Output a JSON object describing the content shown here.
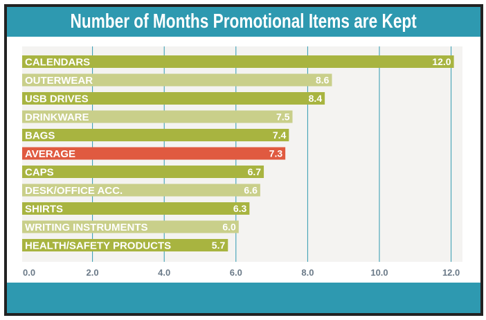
{
  "chart_data": {
    "type": "bar",
    "orientation": "horizontal",
    "title": "Number of Months Promotional Items are Kept",
    "categories": [
      "CALENDARS",
      "OUTERWEAR",
      "USB DRIVES",
      "DRINKWARE",
      "BAGS",
      "AVERAGE",
      "CAPS",
      "DESK/OFFICE ACC.",
      "SHIRTS",
      "WRITING INSTRUMENTS",
      "HEALTH/SAFETY PRODUCTS"
    ],
    "values": [
      12.0,
      8.6,
      8.4,
      7.5,
      7.4,
      7.3,
      6.7,
      6.6,
      6.3,
      6.0,
      5.7
    ],
    "value_labels": [
      "12.0",
      "8.6",
      "8.4",
      "7.5",
      "7.4",
      "7.3",
      "6.7",
      "6.6",
      "6.3",
      "6.0",
      "5.7"
    ],
    "xlim": [
      0,
      12
    ],
    "xticks": [
      "0.0",
      "2.0",
      "4.0",
      "6.0",
      "8.0",
      "10.0",
      "12.0"
    ],
    "xtick_values": [
      0,
      2,
      4,
      6,
      8,
      10,
      12
    ],
    "grid": "vertical",
    "xlabel": "",
    "ylabel": "",
    "colors": {
      "dark": "#a8b440",
      "light": "#c9cf8a",
      "highlight": "#e05a40",
      "grid": "#2e99b0",
      "plot_bg": "#f4f3f1",
      "header": "#2e99b0"
    },
    "bar_styles": [
      "dark",
      "light",
      "dark",
      "light",
      "dark",
      "highlight",
      "dark",
      "light",
      "dark",
      "light",
      "dark"
    ]
  }
}
